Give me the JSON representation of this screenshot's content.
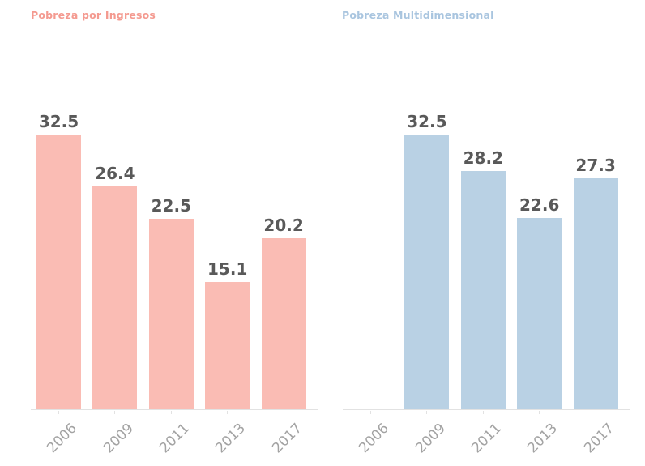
{
  "page": {
    "background_color": "#ffffff"
  },
  "chart_data": [
    {
      "type": "bar",
      "title": "Pobreza por Ingresos",
      "categories": [
        "2006",
        "2009",
        "2011",
        "2013",
        "2017"
      ],
      "values": [
        32.5,
        26.4,
        22.5,
        15.1,
        20.2
      ],
      "bar_color": "#fabcb4",
      "title_color": "#f49a90",
      "value_label_color": "#595959",
      "tick_label_color": "#a3a3a3",
      "axis_color": "#e2e2e2",
      "ylim": [
        0,
        35
      ],
      "xlabel": "",
      "ylabel": "",
      "grid": false,
      "legend": "none",
      "value_labels": "above-bars",
      "x_tick_rotation": 45
    },
    {
      "type": "bar",
      "title": "Pobreza Multidimensional",
      "categories": [
        "2006",
        "2009",
        "2011",
        "2013",
        "2017"
      ],
      "values": [
        null,
        32.5,
        28.2,
        22.6,
        27.3
      ],
      "bar_color": "#b9d1e4",
      "title_color": "#a9c5df",
      "value_label_color": "#595959",
      "tick_label_color": "#a3a3a3",
      "axis_color": "#e2e2e2",
      "ylim": [
        0,
        35
      ],
      "xlabel": "",
      "ylabel": "",
      "grid": false,
      "legend": "none",
      "value_labels": "above-bars",
      "x_tick_rotation": 45
    }
  ]
}
